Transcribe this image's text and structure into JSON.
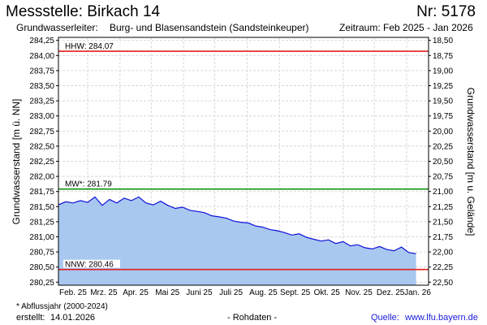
{
  "header": {
    "title": "Messstelle: Birkach 14",
    "number": "Nr: 5178",
    "aquifer_label": "Grundwasserleiter:",
    "aquifer_value": "Burg- und Blasensandstein (Sandsteinkeuper)",
    "period": "Zeitraum: Feb 2025 - Jan 2026"
  },
  "footer": {
    "footnote": "* Abflussjahr (2000-2024)",
    "created_label": "erstellt:",
    "created_date": "14.01.2026",
    "rawdata": "- Rohdaten -",
    "source_label": "Quelle:",
    "source_url": "www.lfu.bayern.de"
  },
  "colors": {
    "line": "#1010d8",
    "fill": "#a8c8f0",
    "hhw_nnw": "#e02020",
    "mw": "#109010",
    "grid": "#d8d8d8"
  },
  "chart_data": {
    "type": "area",
    "ylabel": "Grundwasserstand [m ü. NN]",
    "ylabel_right": "Grundwasserstand [m u. Gelände]",
    "ylim": [
      280.2,
      284.3
    ],
    "yticks": [
      "284,25",
      "284,00",
      "283,75",
      "283,50",
      "283,25",
      "283,00",
      "282,75",
      "282,50",
      "282,25",
      "282,00",
      "281,75",
      "281,50",
      "281,25",
      "281,00",
      "280,75",
      "280,50",
      "280,25"
    ],
    "yticks_right": [
      "18,50",
      "18,75",
      "19,00",
      "19,25",
      "19,50",
      "19,75",
      "20,00",
      "20,25",
      "20,50",
      "20,75",
      "21,00",
      "21,25",
      "21,50",
      "21,75",
      "22,00",
      "22,25",
      "22,50"
    ],
    "xticks": [
      "Feb. 25",
      "Mrz. 25",
      "Apr. 25",
      "Mai 25",
      "Juni 25",
      "Juli 25",
      "Aug. 25",
      "Sept. 25",
      "Okt. 25",
      "Nov. 25",
      "Dez. 25",
      "Jan. 26"
    ],
    "grid": true,
    "reference_lines": [
      {
        "label": "HHW: 284.07",
        "value": 284.07,
        "color": "#e02020"
      },
      {
        "label": "MW*: 281.79",
        "value": 281.79,
        "color": "#109010"
      },
      {
        "label": "NNW: 280.46",
        "value": 280.46,
        "color": "#e02020"
      }
    ],
    "series": [
      {
        "dates": [
          "2025-02-01",
          "2025-02-08",
          "2025-02-15",
          "2025-02-22",
          "2025-03-01",
          "2025-03-08",
          "2025-03-15",
          "2025-03-22",
          "2025-03-29",
          "2025-04-05",
          "2025-04-12",
          "2025-04-19",
          "2025-04-26",
          "2025-05-03",
          "2025-05-10",
          "2025-05-17",
          "2025-05-24",
          "2025-05-31",
          "2025-06-07",
          "2025-06-14",
          "2025-06-21",
          "2025-06-28",
          "2025-07-05",
          "2025-07-12",
          "2025-07-19",
          "2025-07-26",
          "2025-08-02",
          "2025-08-09",
          "2025-08-16",
          "2025-08-23",
          "2025-08-30",
          "2025-09-06",
          "2025-09-13",
          "2025-09-20",
          "2025-09-27",
          "2025-10-04",
          "2025-10-11",
          "2025-10-18",
          "2025-10-25",
          "2025-11-01",
          "2025-11-08",
          "2025-11-15",
          "2025-11-22",
          "2025-11-29",
          "2025-12-06",
          "2025-12-13",
          "2025-12-20",
          "2025-12-27",
          "2026-01-03",
          "2026-01-10"
        ],
        "values": [
          281.53,
          281.58,
          281.56,
          281.6,
          281.57,
          281.66,
          281.52,
          281.62,
          281.56,
          281.64,
          281.6,
          281.66,
          281.56,
          281.53,
          281.59,
          281.52,
          281.47,
          281.49,
          281.44,
          281.42,
          281.4,
          281.35,
          281.33,
          281.31,
          281.26,
          281.24,
          281.23,
          281.18,
          281.16,
          281.12,
          281.1,
          281.07,
          281.03,
          281.05,
          280.99,
          280.96,
          280.93,
          280.95,
          280.89,
          280.92,
          280.85,
          280.87,
          280.82,
          280.8,
          280.84,
          280.79,
          280.77,
          280.83,
          280.74,
          280.72
        ]
      }
    ]
  }
}
